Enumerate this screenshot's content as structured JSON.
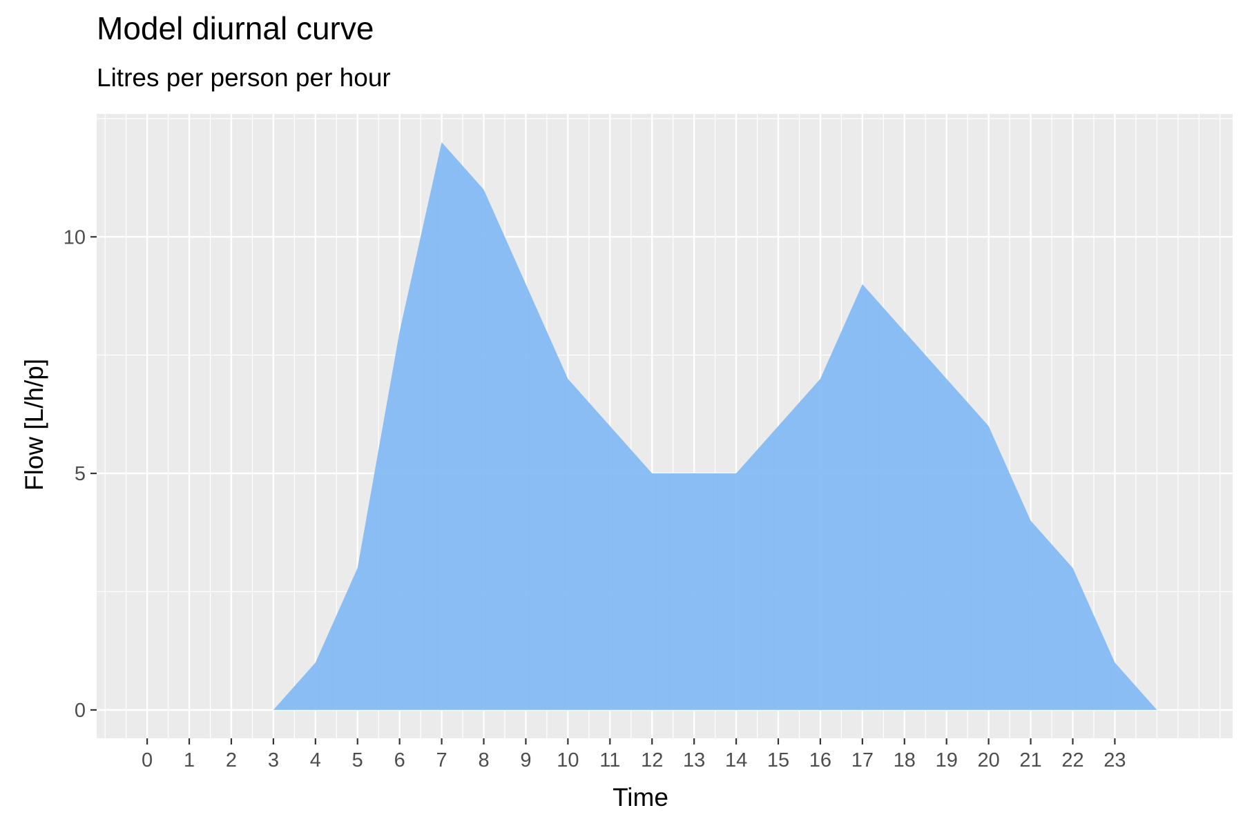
{
  "chart_data": {
    "type": "area",
    "title": "Model diurnal curve",
    "subtitle": "Litres per person per hour",
    "xlabel": "Time",
    "ylabel": "Flow [L/h/p]",
    "x_tick_labels": [
      "0",
      "1",
      "2",
      "3",
      "4",
      "5",
      "6",
      "7",
      "8",
      "9",
      "10",
      "11",
      "12",
      "13",
      "14",
      "15",
      "16",
      "17",
      "18",
      "19",
      "20",
      "21",
      "22",
      "23"
    ],
    "y_ticks": [
      0,
      5,
      10
    ],
    "xlim": [
      -1.2,
      25.8
    ],
    "ylim": [
      -0.6,
      12.6
    ],
    "grid": true,
    "fill_color": "#84bbf4",
    "panel_color": "#ebebeb",
    "series": [
      {
        "x": [
          3,
          4,
          5,
          6,
          7,
          8,
          9,
          10,
          11,
          12,
          13,
          14,
          15,
          16,
          17,
          18,
          19,
          20,
          21,
          22,
          23,
          24
        ],
        "y": [
          0,
          1,
          3,
          8,
          12,
          11,
          9,
          7,
          6,
          5,
          5,
          5,
          6,
          7,
          9,
          8,
          7,
          6,
          4,
          3,
          1,
          0
        ]
      }
    ]
  }
}
